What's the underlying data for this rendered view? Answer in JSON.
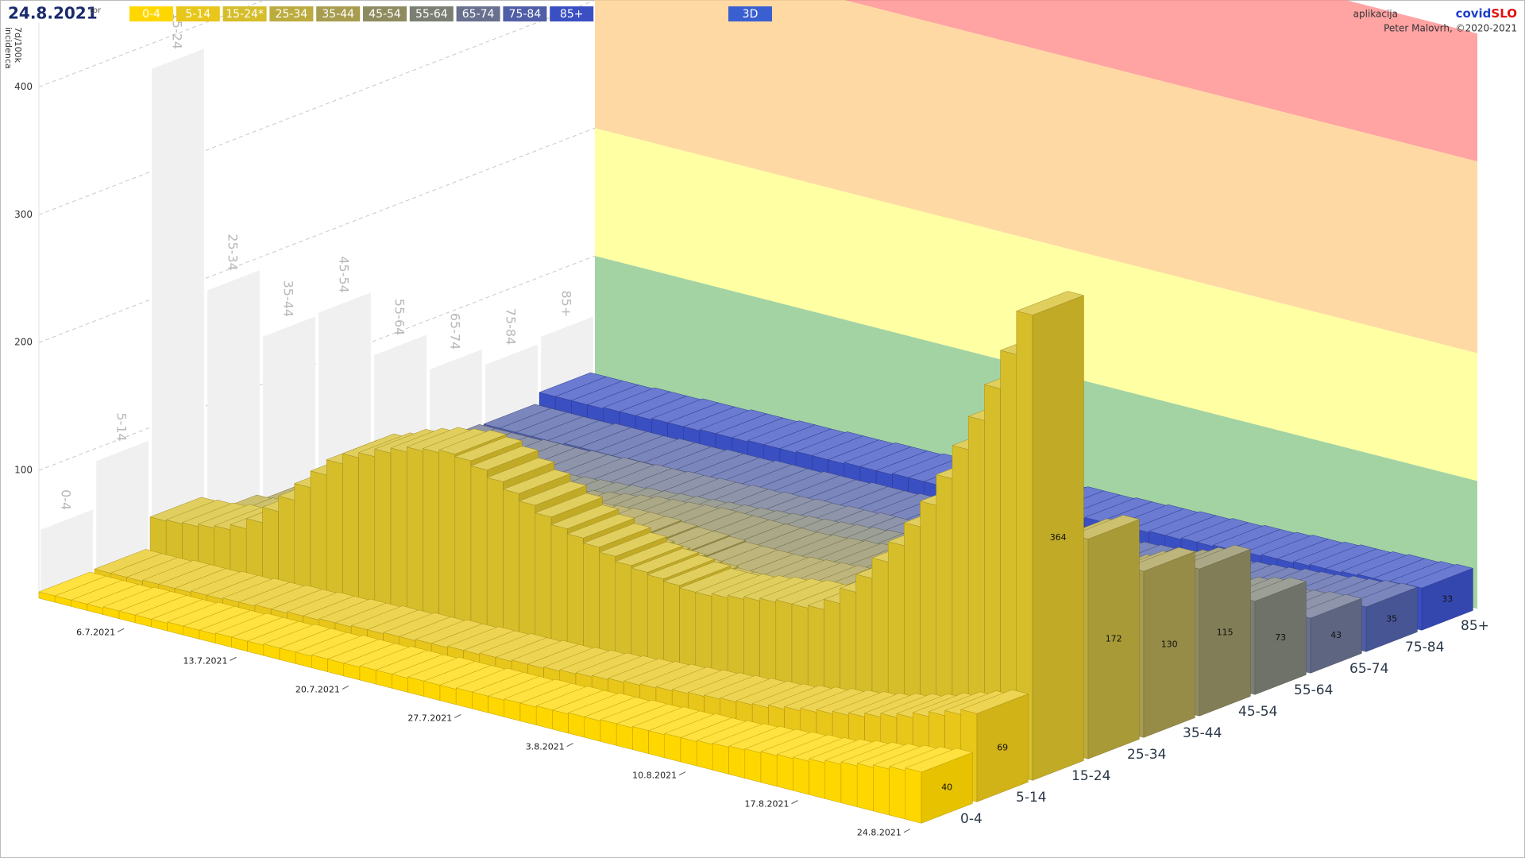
{
  "chart_data": {
    "type": "bar3d",
    "title": "24.8.2021",
    "weekday": "tor",
    "y_label_lines": [
      "7d/100k",
      "incidenca"
    ],
    "credit_prefix": "aplikacija",
    "brand": [
      "covid",
      "SLO"
    ],
    "author": "Peter Malovrh, ©2020-2021",
    "button": "3D",
    "ylim": [
      0,
      450
    ],
    "yticks": [
      100,
      200,
      300,
      400
    ],
    "grid": true,
    "categories": [
      null,
      null,
      null,
      null,
      null,
      "6.7.2021",
      null,
      null,
      null,
      null,
      null,
      null,
      "13.7.2021",
      null,
      null,
      null,
      null,
      null,
      null,
      "20.7.2021",
      null,
      null,
      null,
      null,
      null,
      null,
      "27.7.2021",
      null,
      null,
      null,
      null,
      null,
      null,
      "3.8.2021",
      null,
      null,
      null,
      null,
      null,
      null,
      "10.8.2021",
      null,
      null,
      null,
      null,
      null,
      null,
      "17.8.2021",
      null,
      null,
      null,
      null,
      null,
      null,
      "24.8.2021"
    ],
    "row_labels": [
      "0-4",
      "5-14",
      "15-24",
      "25-34",
      "35-44",
      "45-54",
      "55-64",
      "65-74",
      "75-84",
      "85+"
    ],
    "max_values": [
      53,
      90,
      380,
      190,
      137,
      139,
      89,
      61,
      48,
      53
    ],
    "zone_bounds": [
      0,
      100,
      200,
      350,
      450
    ],
    "zone_colors": [
      "#8cc88c",
      "#ffff8c",
      "#ffd08c",
      "#ff8c8c"
    ],
    "series": [
      {
        "name": "0-4",
        "color": "#ffd700",
        "values": [
          5,
          5,
          5,
          5,
          6,
          6,
          6,
          6,
          7,
          7,
          7,
          8,
          8,
          8,
          9,
          9,
          9,
          10,
          10,
          10,
          11,
          11,
          11,
          12,
          12,
          12,
          13,
          13,
          13,
          14,
          14,
          15,
          15,
          16,
          16,
          17,
          17,
          18,
          18,
          19,
          19,
          20,
          21,
          22,
          23,
          24,
          25,
          26,
          28,
          30,
          32,
          34,
          36,
          38,
          40
        ]
      },
      {
        "name": "5-14",
        "color": "#e8c61a",
        "values": [
          6,
          6,
          6,
          7,
          7,
          7,
          8,
          8,
          9,
          9,
          10,
          10,
          11,
          11,
          12,
          12,
          13,
          13,
          14,
          14,
          15,
          15,
          16,
          16,
          17,
          17,
          18,
          18,
          19,
          20,
          21,
          22,
          23,
          24,
          25,
          26,
          27,
          28,
          29,
          30,
          31,
          32,
          34,
          36,
          38,
          40,
          42,
          44,
          47,
          50,
          53,
          57,
          61,
          65,
          69
        ]
      },
      {
        "name": "15-24*",
        "color": "#d6bd2a",
        "values": [
          30,
          31,
          32,
          34,
          36,
          40,
          48,
          60,
          72,
          85,
          98,
          110,
          118,
          122,
          128,
          132,
          136,
          138,
          140,
          138,
          134,
          128,
          122,
          116,
          110,
          104,
          100,
          96,
          92,
          88,
          86,
          84,
          82,
          80,
          80,
          82,
          84,
          86,
          88,
          90,
          90,
          92,
          100,
          112,
          126,
          142,
          158,
          176,
          196,
          220,
          246,
          272,
          300,
          330,
          364
        ]
      },
      {
        "name": "25-34",
        "color": "#bcab3e",
        "values": [
          15,
          16,
          17,
          18,
          20,
          22,
          26,
          32,
          38,
          44,
          50,
          56,
          60,
          62,
          64,
          66,
          68,
          70,
          72,
          72,
          71,
          70,
          68,
          66,
          64,
          62,
          60,
          58,
          56,
          55,
          54,
          54,
          54,
          55,
          56,
          58,
          60,
          62,
          64,
          66,
          68,
          70,
          74,
          80,
          88,
          96,
          104,
          112,
          120,
          130,
          140,
          150,
          158,
          166,
          172
        ]
      },
      {
        "name": "35-44",
        "color": "#a79c4f",
        "values": [
          10,
          10,
          11,
          12,
          13,
          14,
          16,
          19,
          22,
          26,
          30,
          34,
          37,
          40,
          42,
          44,
          46,
          48,
          50,
          51,
          52,
          52,
          52,
          51,
          50,
          50,
          49,
          48,
          48,
          48,
          48,
          49,
          50,
          51,
          52,
          54,
          56,
          58,
          60,
          62,
          64,
          66,
          68,
          72,
          76,
          80,
          85,
          90,
          95,
          100,
          106,
          112,
          118,
          124,
          130
        ]
      },
      {
        "name": "45-54",
        "color": "#8f8b60",
        "values": [
          8,
          8,
          9,
          9,
          10,
          11,
          12,
          14,
          16,
          18,
          21,
          24,
          26,
          28,
          30,
          32,
          34,
          36,
          38,
          39,
          40,
          41,
          42,
          42,
          42,
          42,
          42,
          42,
          42,
          43,
          44,
          45,
          46,
          47,
          48,
          50,
          52,
          54,
          56,
          58,
          60,
          62,
          64,
          67,
          70,
          74,
          78,
          82,
          86,
          90,
          95,
          100,
          105,
          110,
          115
        ]
      },
      {
        "name": "55-64",
        "color": "#7b7f73",
        "values": [
          5,
          5,
          5,
          6,
          6,
          7,
          7,
          8,
          9,
          10,
          11,
          12,
          13,
          14,
          15,
          16,
          17,
          18,
          19,
          20,
          21,
          22,
          23,
          24,
          25,
          26,
          27,
          28,
          29,
          30,
          31,
          32,
          33,
          34,
          35,
          36,
          37,
          38,
          39,
          40,
          41,
          42,
          44,
          46,
          48,
          50,
          52,
          54,
          56,
          58,
          61,
          64,
          67,
          70,
          73
        ]
      },
      {
        "name": "65-74",
        "color": "#68708e",
        "values": [
          3,
          3,
          3,
          3,
          4,
          4,
          4,
          5,
          5,
          6,
          6,
          7,
          7,
          8,
          8,
          9,
          9,
          10,
          10,
          11,
          11,
          12,
          12,
          13,
          13,
          14,
          14,
          15,
          15,
          16,
          16,
          17,
          17,
          18,
          18,
          19,
          19,
          20,
          21,
          22,
          23,
          24,
          25,
          26,
          27,
          28,
          29,
          31,
          33,
          35,
          37,
          39,
          40,
          42,
          43
        ]
      },
      {
        "name": "75-84",
        "color": "#4f5ea6",
        "values": [
          2,
          2,
          2,
          2,
          2,
          3,
          3,
          3,
          3,
          4,
          4,
          4,
          5,
          5,
          5,
          6,
          6,
          6,
          7,
          7,
          7,
          8,
          8,
          8,
          9,
          9,
          9,
          10,
          10,
          11,
          11,
          12,
          12,
          13,
          13,
          14,
          14,
          15,
          16,
          17,
          18,
          19,
          20,
          21,
          22,
          23,
          24,
          25,
          27,
          28,
          29,
          31,
          32,
          34,
          35
        ]
      },
      {
        "name": "85+",
        "color": "#3a4fc2",
        "values": [
          10,
          10,
          10,
          10,
          11,
          11,
          11,
          12,
          12,
          12,
          13,
          13,
          13,
          14,
          14,
          14,
          15,
          15,
          15,
          16,
          16,
          16,
          17,
          17,
          17,
          18,
          18,
          18,
          19,
          19,
          19,
          20,
          20,
          20,
          21,
          21,
          22,
          22,
          23,
          23,
          24,
          24,
          25,
          25,
          26,
          27,
          27,
          28,
          29,
          29,
          30,
          31,
          31,
          32,
          33
        ]
      }
    ]
  }
}
